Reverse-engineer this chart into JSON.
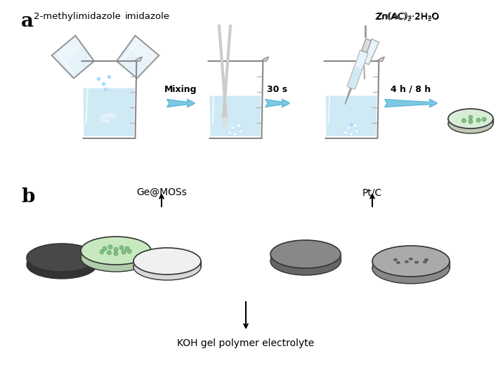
{
  "title_a": "a",
  "title_b": "b",
  "label_2methyl": "2-methylimidazole",
  "label_imidazole": "imidazole",
  "label_zn": "Zn(AC)₂·2H₂O",
  "label_mixing": "Mixing",
  "label_30s": "30 s",
  "label_4h8h": "4 h / 8 h",
  "label_geamos": "Ge@MOSs",
  "label_ptc": "Pt/C",
  "label_koh": "KOH gel polymer electrolyte",
  "bg_color": "#ffffff",
  "beaker_color": "#d0eaf5",
  "beaker_outline": "#a0c8e0",
  "arrow_color": "#7ec8e3",
  "disk_dark": "#606060",
  "disk_gray": "#909090",
  "disk_light": "#c0c0c0",
  "disk_green": "#c8e6c0",
  "disk_white": "#f0f0f0"
}
